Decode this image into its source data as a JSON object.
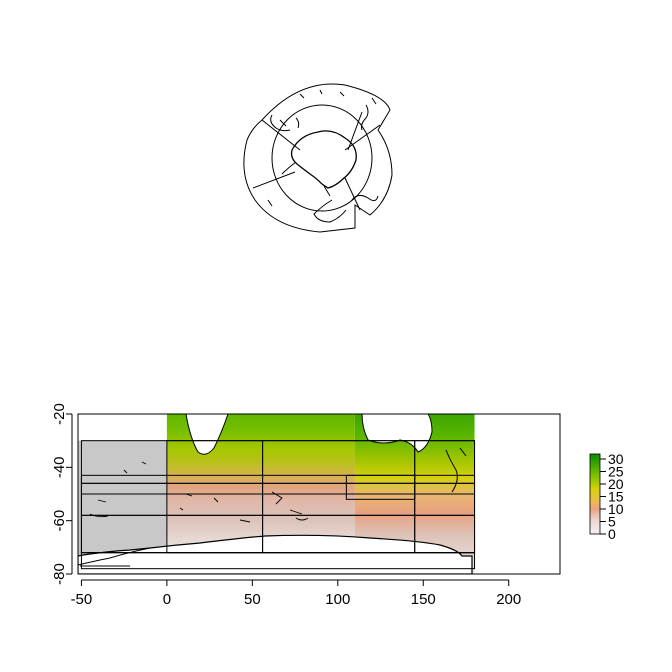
{
  "polar_map": {
    "projection": "polar-stereographic",
    "hemisphere": "south",
    "features": [
      "coastline",
      "graticule-circles",
      "sector-boundaries"
    ]
  },
  "chart_data": {
    "type": "heatmap",
    "title": "",
    "xlabel": "",
    "ylabel": "",
    "xlim": [
      -52,
      230
    ],
    "ylim": [
      -80,
      -20
    ],
    "x_ticks": [
      "-50",
      "0",
      "50",
      "100",
      "150",
      "200"
    ],
    "y_ticks": [
      "-80",
      "-60",
      "-40",
      "-20"
    ],
    "grid": false,
    "legend": "colorbar-right",
    "colorbar": {
      "ticks": [
        "0",
        "5",
        "10",
        "15",
        "20",
        "25",
        "30"
      ],
      "range": [
        0,
        32
      ],
      "stops": [
        {
          "value": 0,
          "color": "#f2f2f2"
        },
        {
          "value": 6,
          "color": "#ead2c8"
        },
        {
          "value": 10,
          "color": "#e9a383"
        },
        {
          "value": 14,
          "color": "#e8c23d"
        },
        {
          "value": 18,
          "color": "#d5d20a"
        },
        {
          "value": 24,
          "color": "#76be00"
        },
        {
          "value": 30,
          "color": "#1f9a00"
        },
        {
          "value": 32,
          "color": "#168e00"
        }
      ]
    },
    "no_data_color": "#c8c8c8",
    "data_extent": {
      "lon": [
        0,
        180
      ],
      "lat": [
        -80,
        -20
      ]
    },
    "region_boxes": [
      {
        "lon": [
          -50,
          180
        ],
        "lat": [
          -72,
          -30
        ]
      },
      {
        "lon": [
          0,
          56
        ],
        "lat": [
          -72,
          -30
        ]
      },
      {
        "lon": [
          56,
          145
        ],
        "lat": [
          -72,
          -30
        ]
      },
      {
        "lon": [
          105,
          145
        ],
        "lat": [
          -52,
          -43
        ]
      },
      {
        "lon": [
          145,
          180
        ],
        "lat": [
          -72,
          -30
        ]
      },
      {
        "lon": [
          -50,
          180
        ],
        "lat": [
          -46,
          -43
        ]
      },
      {
        "lon": [
          -50,
          180
        ],
        "lat": [
          -50,
          -46
        ]
      },
      {
        "lon": [
          -50,
          180
        ],
        "lat": [
          -58,
          -50
        ]
      },
      {
        "lon": [
          -50,
          180
        ],
        "lat": [
          -72,
          -58
        ]
      },
      {
        "lon": [
          -50,
          180
        ],
        "lat": [
          -78,
          -72
        ]
      }
    ]
  }
}
